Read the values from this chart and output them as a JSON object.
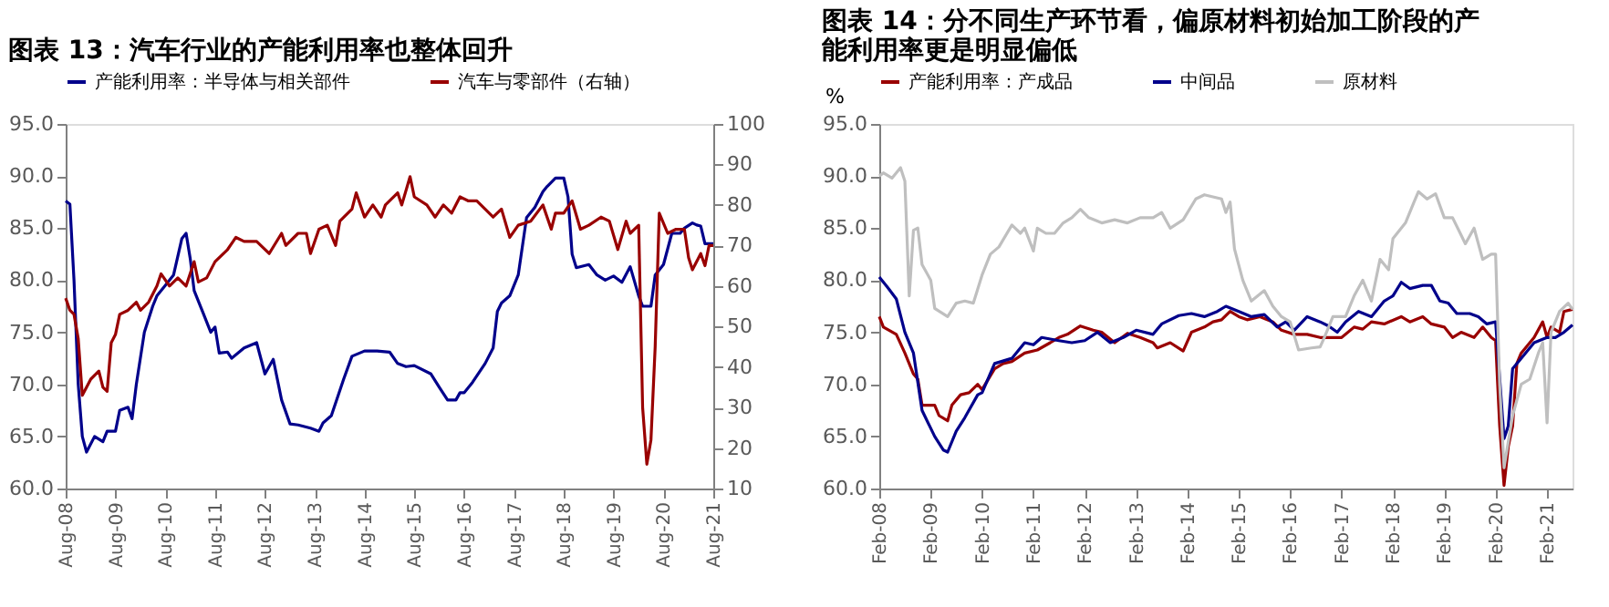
{
  "chart_data": [
    {
      "type": "line",
      "title": "图表 13：汽车行业的产能利用率也整体回升",
      "legend": "top",
      "grid": false,
      "line_style": "solid",
      "xlim": [
        "2008-08",
        "2021-08"
      ],
      "xticks": [
        {
          "value": "2008-08",
          "label": "Aug-08"
        },
        {
          "value": "2009-08",
          "label": "Aug-09"
        },
        {
          "value": "2010-08",
          "label": "Aug-10"
        },
        {
          "value": "2011-08",
          "label": "Aug-11"
        },
        {
          "value": "2012-08",
          "label": "Aug-12"
        },
        {
          "value": "2013-08",
          "label": "Aug-13"
        },
        {
          "value": "2014-08",
          "label": "Aug-14"
        },
        {
          "value": "2015-08",
          "label": "Aug-15"
        },
        {
          "value": "2016-08",
          "label": "Aug-16"
        },
        {
          "value": "2017-08",
          "label": "Aug-17"
        },
        {
          "value": "2018-08",
          "label": "Aug-18"
        },
        {
          "value": "2019-08",
          "label": "Aug-19"
        },
        {
          "value": "2020-08",
          "label": "Aug-20"
        },
        {
          "value": "2021-08",
          "label": "Aug-21"
        }
      ],
      "ylim": [
        60,
        95
      ],
      "yticks": [
        {
          "value": 60,
          "label": "60.0"
        },
        {
          "value": 65,
          "label": "65.0"
        },
        {
          "value": 70,
          "label": "70.0"
        },
        {
          "value": 75,
          "label": "75.0"
        },
        {
          "value": 80,
          "label": "80.0"
        },
        {
          "value": 85,
          "label": "85.0"
        },
        {
          "value": 90,
          "label": "90.0"
        },
        {
          "value": 95,
          "label": "95.0"
        }
      ],
      "y2lim": [
        10,
        100
      ],
      "y2ticks": [
        10,
        20,
        30,
        40,
        50,
        60,
        70,
        80,
        90,
        100
      ],
      "series": [
        {
          "name": "产能利用率：半导体与相关部件",
          "color": "#00008b",
          "x": [
            "2008-08",
            "2008-09",
            "2008-10",
            "2008-11",
            "2008-12",
            "2009-01",
            "2009-03",
            "2009-05",
            "2009-06",
            "2009-08",
            "2009-09",
            "2009-11",
            "2009-12",
            "2010-01",
            "2010-03",
            "2010-05",
            "2010-06",
            "2010-08",
            "2010-10",
            "2010-12",
            "2011-01",
            "2011-02",
            "2011-03",
            "2011-05",
            "2011-07",
            "2011-08",
            "2011-09",
            "2011-11",
            "2011-12",
            "2012-03",
            "2012-06",
            "2012-08",
            "2012-10",
            "2012-12",
            "2013-02",
            "2013-04",
            "2013-07",
            "2013-09",
            "2013-10",
            "2013-12",
            "2014-03",
            "2014-05",
            "2014-08",
            "2014-11",
            "2015-02",
            "2015-04",
            "2015-06",
            "2015-08",
            "2015-12",
            "2016-02",
            "2016-04",
            "2016-06",
            "2016-07",
            "2016-08",
            "2016-10",
            "2017-01",
            "2017-03",
            "2017-04",
            "2017-05",
            "2017-07",
            "2017-09",
            "2017-11",
            "2018-01",
            "2018-03",
            "2018-04",
            "2018-06",
            "2018-08",
            "2018-09",
            "2018-10",
            "2018-11",
            "2019-02",
            "2019-04",
            "2019-06",
            "2019-08",
            "2019-10",
            "2019-12",
            "2020-02",
            "2020-03",
            "2020-05",
            "2020-06",
            "2020-08",
            "2020-10",
            "2020-12",
            "2021-01",
            "2021-03",
            "2021-04",
            "2021-05",
            "2021-06",
            "2021-08"
          ],
          "values": [
            87.6,
            87.3,
            80,
            70,
            65,
            63.5,
            65,
            64.5,
            65.5,
            65.5,
            67.5,
            67.8,
            66.7,
            70,
            75,
            77.5,
            78.5,
            79.5,
            80.5,
            84,
            84.5,
            82,
            79,
            77,
            75,
            75.5,
            73,
            73.1,
            72.5,
            73.5,
            74,
            71,
            72.4,
            68.5,
            66.2,
            66.1,
            65.8,
            65.5,
            66.3,
            67,
            70.5,
            72.7,
            73.2,
            73.2,
            73.1,
            72,
            71.7,
            71.8,
            71,
            69.7,
            68.5,
            68.5,
            69.2,
            69.2,
            70.2,
            72,
            73.5,
            77,
            77.8,
            78.5,
            80.5,
            86,
            87,
            88.5,
            89,
            89.8,
            89.8,
            88,
            82.5,
            81.2,
            81.5,
            80.5,
            80,
            80.4,
            79.8,
            81.3,
            78.5,
            77.5,
            77.5,
            80.5,
            81.5,
            84.5,
            84.5,
            85,
            85.5,
            85.3,
            85.2,
            83.5,
            83.5
          ]
        },
        {
          "name": "汽车与零部件（右轴）",
          "color": "#990000",
          "axis": "y2",
          "x": [
            "2008-08",
            "2008-09",
            "2008-10",
            "2008-11",
            "2008-12",
            "2009-02",
            "2009-04",
            "2009-05",
            "2009-06",
            "2009-07",
            "2009-08",
            "2009-09",
            "2009-11",
            "2010-01",
            "2010-02",
            "2010-04",
            "2010-06",
            "2010-07",
            "2010-09",
            "2010-11",
            "2011-01",
            "2011-03",
            "2011-04",
            "2011-06",
            "2011-08",
            "2011-11",
            "2012-01",
            "2012-03",
            "2012-06",
            "2012-09",
            "2012-12",
            "2013-01",
            "2013-04",
            "2013-06",
            "2013-07",
            "2013-09",
            "2013-11",
            "2014-01",
            "2014-02",
            "2014-05",
            "2014-06",
            "2014-08",
            "2014-10",
            "2014-12",
            "2015-01",
            "2015-04",
            "2015-05",
            "2015-07",
            "2015-08",
            "2015-11",
            "2016-01",
            "2016-03",
            "2016-05",
            "2016-07",
            "2016-09",
            "2016-11",
            "2017-01",
            "2017-03",
            "2017-05",
            "2017-07",
            "2017-09",
            "2017-12",
            "2018-03",
            "2018-05",
            "2018-06",
            "2018-08",
            "2018-10",
            "2018-12",
            "2019-02",
            "2019-05",
            "2019-07",
            "2019-09",
            "2019-11",
            "2019-12",
            "2020-02",
            "2020-03",
            "2020-04",
            "2020-05",
            "2020-06",
            "2020-07",
            "2020-09",
            "2020-11",
            "2021-01",
            "2021-02",
            "2021-03",
            "2021-05",
            "2021-06",
            "2021-07",
            "2021-08"
          ],
          "values": [
            57,
            54,
            53,
            47,
            33,
            37,
            39,
            35,
            34,
            46,
            48,
            53,
            54,
            56,
            54,
            56,
            60,
            63,
            60,
            62,
            60,
            66,
            61,
            62,
            66,
            69,
            72,
            71,
            71,
            68,
            73,
            70,
            73,
            73,
            68,
            74,
            75,
            70,
            76,
            79,
            83,
            77,
            80,
            77,
            80,
            83,
            80,
            87,
            82,
            80,
            77,
            80,
            78,
            82,
            81,
            81,
            79,
            77,
            79,
            72,
            75,
            76,
            80,
            74,
            78,
            78,
            81,
            74,
            75,
            77,
            76,
            69,
            76,
            73,
            75,
            30,
            16,
            22,
            45,
            78,
            73,
            74,
            74,
            67,
            64,
            68,
            65,
            70,
            70
          ]
        }
      ]
    },
    {
      "type": "line",
      "title": "图表 14：分不同生产环节看，偏原材料初始加工阶段的产能利用率更是明显偏低",
      "ylabel": "%",
      "legend": "top",
      "grid": false,
      "line_style": "solid",
      "xlim": [
        "2008-02",
        "2021-08"
      ],
      "xticks": [
        {
          "value": "2008-02",
          "label": "Feb-08"
        },
        {
          "value": "2009-02",
          "label": "Feb-09"
        },
        {
          "value": "2010-02",
          "label": "Feb-10"
        },
        {
          "value": "2011-02",
          "label": "Feb-11"
        },
        {
          "value": "2012-02",
          "label": "Feb-12"
        },
        {
          "value": "2013-02",
          "label": "Feb-13"
        },
        {
          "value": "2014-02",
          "label": "Feb-14"
        },
        {
          "value": "2015-02",
          "label": "Feb-15"
        },
        {
          "value": "2016-02",
          "label": "Feb-16"
        },
        {
          "value": "2017-02",
          "label": "Feb-17"
        },
        {
          "value": "2018-02",
          "label": "Feb-18"
        },
        {
          "value": "2019-02",
          "label": "Feb-19"
        },
        {
          "value": "2020-02",
          "label": "Feb-20"
        },
        {
          "value": "2021-02",
          "label": "Feb-21"
        }
      ],
      "ylim": [
        60,
        95
      ],
      "yticks": [
        {
          "value": 60,
          "label": "60.0"
        },
        {
          "value": 65,
          "label": "65.0"
        },
        {
          "value": 70,
          "label": "70.0"
        },
        {
          "value": 75,
          "label": "75.0"
        },
        {
          "value": 80,
          "label": "80.0"
        },
        {
          "value": 85,
          "label": "85.0"
        },
        {
          "value": 90,
          "label": "90.0"
        },
        {
          "value": 95,
          "label": "95.0"
        }
      ],
      "series": [
        {
          "name": "产能利用率：产成品",
          "color": "#990000",
          "x": [
            "2008-02",
            "2008-03",
            "2008-06",
            "2008-08",
            "2008-10",
            "2008-11",
            "2008-12",
            "2009-03",
            "2009-04",
            "2009-06",
            "2009-07",
            "2009-09",
            "2009-11",
            "2010-01",
            "2010-02",
            "2010-05",
            "2010-07",
            "2010-09",
            "2010-12",
            "2011-03",
            "2011-06",
            "2011-08",
            "2011-10",
            "2012-01",
            "2012-04",
            "2012-06",
            "2012-09",
            "2012-12",
            "2013-03",
            "2013-06",
            "2013-07",
            "2013-10",
            "2014-01",
            "2014-03",
            "2014-06",
            "2014-08",
            "2014-10",
            "2014-12",
            "2015-02",
            "2015-04",
            "2015-07",
            "2015-10",
            "2015-12",
            "2016-03",
            "2016-06",
            "2016-09",
            "2016-12",
            "2017-02",
            "2017-05",
            "2017-07",
            "2017-09",
            "2017-12",
            "2018-04",
            "2018-06",
            "2018-09",
            "2018-11",
            "2019-02",
            "2019-04",
            "2019-06",
            "2019-09",
            "2019-11",
            "2020-01",
            "2020-02",
            "2020-03",
            "2020-04",
            "2020-05",
            "2020-06",
            "2020-07",
            "2020-08",
            "2020-11",
            "2021-01",
            "2021-02",
            "2021-03",
            "2021-05",
            "2021-06",
            "2021-08"
          ],
          "values": [
            76.5,
            75.5,
            74.8,
            73,
            71,
            70.5,
            68,
            68,
            67,
            66.5,
            68,
            69,
            69.2,
            70,
            69.5,
            71.5,
            72,
            72.2,
            73,
            73.3,
            74,
            74.5,
            74.8,
            75.6,
            75.2,
            75,
            74,
            74.9,
            74.5,
            74,
            73.5,
            74,
            73.2,
            75,
            75.5,
            76,
            76.2,
            77,
            76.5,
            76.2,
            76.5,
            76,
            75.2,
            74.8,
            74.8,
            74.5,
            74.5,
            74.5,
            75.5,
            75.3,
            76,
            75.8,
            76.5,
            76,
            76.5,
            75.8,
            75.5,
            74.5,
            75,
            74.5,
            75.5,
            74.5,
            74.2,
            66,
            60.3,
            64,
            66,
            72,
            73,
            74.5,
            76,
            74.5,
            75.5,
            75,
            77,
            77.2
          ]
        },
        {
          "name": "中间品",
          "color": "#00008b",
          "x": [
            "2008-02",
            "2008-04",
            "2008-06",
            "2008-08",
            "2008-10",
            "2008-12",
            "2009-03",
            "2009-05",
            "2009-06",
            "2009-08",
            "2009-10",
            "2010-01",
            "2010-02",
            "2010-05",
            "2010-09",
            "2010-12",
            "2011-02",
            "2011-04",
            "2011-08",
            "2011-11",
            "2012-02",
            "2012-05",
            "2012-08",
            "2012-11",
            "2013-02",
            "2013-06",
            "2013-08",
            "2013-12",
            "2014-03",
            "2014-06",
            "2014-09",
            "2014-11",
            "2015-02",
            "2015-05",
            "2015-08",
            "2015-11",
            "2016-01",
            "2016-03",
            "2016-06",
            "2016-09",
            "2016-11",
            "2017-01",
            "2017-03",
            "2017-06",
            "2017-09",
            "2017-12",
            "2018-02",
            "2018-04",
            "2018-06",
            "2018-09",
            "2018-11",
            "2019-01",
            "2019-03",
            "2019-05",
            "2019-08",
            "2019-10",
            "2019-12",
            "2020-02",
            "2020-04",
            "2020-05",
            "2020-06",
            "2020-08",
            "2020-11",
            "2021-02",
            "2021-04",
            "2021-06",
            "2021-08"
          ],
          "values": [
            80.3,
            79.3,
            78.2,
            75,
            73,
            67.5,
            65,
            63.7,
            63.5,
            65.5,
            66.8,
            69,
            69.2,
            72,
            72.5,
            74,
            73.8,
            74.5,
            74.2,
            74,
            74.2,
            75,
            74,
            74.5,
            75.2,
            74.8,
            75.8,
            76.6,
            76.8,
            76.5,
            77,
            77.5,
            77,
            76.5,
            76.7,
            75.5,
            76,
            75.2,
            76.5,
            76,
            75.6,
            75,
            76,
            77,
            76.5,
            78,
            78.5,
            79.8,
            79.2,
            79.5,
            79.5,
            78,
            77.8,
            76.8,
            76.8,
            76.5,
            75.8,
            76,
            64.8,
            66,
            71.5,
            72.5,
            74,
            74.5,
            74.5,
            75,
            75.7
          ]
        },
        {
          "name": "原材料",
          "color": "#bfbfbf",
          "x": [
            "2008-02",
            "2008-03",
            "2008-05",
            "2008-07",
            "2008-08",
            "2008-09",
            "2008-10",
            "2008-11",
            "2008-12",
            "2009-02",
            "2009-03",
            "2009-06",
            "2009-08",
            "2009-10",
            "2009-12",
            "2010-02",
            "2010-04",
            "2010-06",
            "2010-09",
            "2010-11",
            "2010-12",
            "2011-02",
            "2011-03",
            "2011-05",
            "2011-07",
            "2011-09",
            "2011-11",
            "2012-01",
            "2012-03",
            "2012-06",
            "2012-09",
            "2012-12",
            "2013-03",
            "2013-06",
            "2013-08",
            "2013-10",
            "2014-01",
            "2014-04",
            "2014-06",
            "2014-10",
            "2014-11",
            "2014-12",
            "2015-01",
            "2015-03",
            "2015-05",
            "2015-08",
            "2015-10",
            "2015-12",
            "2016-02",
            "2016-04",
            "2016-07",
            "2016-09",
            "2016-10",
            "2016-12",
            "2017-03",
            "2017-05",
            "2017-07",
            "2017-09",
            "2017-11",
            "2018-01",
            "2018-02",
            "2018-05",
            "2018-07",
            "2018-08",
            "2018-10",
            "2018-12",
            "2019-02",
            "2019-04",
            "2019-07",
            "2019-09",
            "2019-11",
            "2020-01",
            "2020-02",
            "2020-03",
            "2020-04",
            "2020-06",
            "2020-08",
            "2020-10",
            "2020-12",
            "2021-01",
            "2021-02",
            "2021-03",
            "2021-05",
            "2021-07",
            "2021-08"
          ],
          "values": [
            90,
            90.3,
            89.8,
            90.8,
            89.5,
            78.5,
            84.8,
            85,
            81.5,
            80,
            77.3,
            76.5,
            77.8,
            78,
            77.8,
            80.5,
            82.5,
            83.2,
            85.3,
            84.5,
            85,
            82.8,
            85,
            84.5,
            84.5,
            85.5,
            86,
            86.8,
            86,
            85.5,
            85.8,
            85.5,
            86,
            86,
            86.5,
            85,
            85.8,
            87.8,
            88.2,
            87.8,
            86.5,
            87.5,
            83,
            80,
            78,
            79,
            77.5,
            76.5,
            76,
            73.3,
            73.5,
            73.6,
            74.5,
            76.5,
            76.5,
            78.5,
            80,
            78,
            82,
            81,
            84,
            85.5,
            87.5,
            88.5,
            87.8,
            88.3,
            86,
            86,
            83.5,
            85,
            82,
            82.5,
            82.5,
            70,
            62,
            67,
            70,
            70.5,
            73,
            74,
            66.3,
            75,
            77,
            77.8,
            77.2
          ]
        }
      ]
    }
  ]
}
